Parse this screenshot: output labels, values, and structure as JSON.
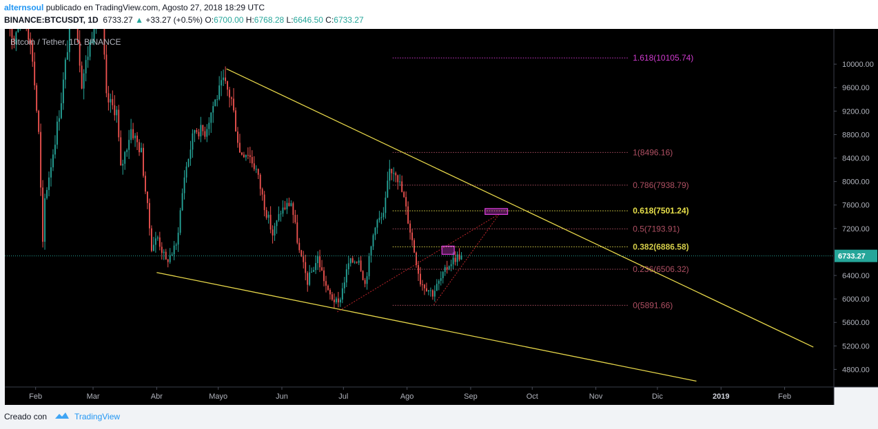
{
  "header": {
    "author": "alternsoul",
    "published_text": " publicado en TradingView.com, Agosto 27, 2018 18:29 UTC",
    "symbol": "BINANCE:BTCUSDT, 1D",
    "last": "6733.27",
    "change_arrow": "▲",
    "change": "+33.27 (+0.5%)",
    "o_label": "O:",
    "o_value": "6700.00",
    "h_label": "H:",
    "h_value": "6768.28",
    "l_label": "L:",
    "l_value": "6646.50",
    "c_label": "C:",
    "c_value": "6733.27"
  },
  "footer": {
    "created_with": "Creado con",
    "brand": "TradingView"
  },
  "chart_data": {
    "type": "candlestick",
    "title": "Bitcoin / Tether, 1D, BINANCE",
    "last_price_label": "6733.27",
    "last_price": 6733.27,
    "ylim": [
      4500,
      10600
    ],
    "y_ticks": [
      4800,
      5200,
      5600,
      6000,
      6400,
      6800,
      7200,
      7600,
      8000,
      8400,
      8800,
      9200,
      9600,
      10000
    ],
    "y_tick_labels": [
      "4800.00",
      "5200.00",
      "5600.00",
      "6000.00",
      "6400.00",
      "6800.00",
      "7200.00",
      "7600.00",
      "8000.00",
      "8400.00",
      "8800.00",
      "9200.00",
      "9600.00",
      "10000.00"
    ],
    "x_start": "2018-01-17",
    "x_end": "2019-02-25",
    "x_ticks": [
      {
        "date": "2018-02-01",
        "label": "Feb",
        "bold": false
      },
      {
        "date": "2018-03-01",
        "label": "Mar",
        "bold": false
      },
      {
        "date": "2018-04-01",
        "label": "Abr",
        "bold": false
      },
      {
        "date": "2018-05-01",
        "label": "Mayo",
        "bold": false
      },
      {
        "date": "2018-06-01",
        "label": "Jun",
        "bold": false
      },
      {
        "date": "2018-07-01",
        "label": "Jul",
        "bold": false
      },
      {
        "date": "2018-08-01",
        "label": "Ago",
        "bold": false
      },
      {
        "date": "2018-09-01",
        "label": "Sep",
        "bold": false
      },
      {
        "date": "2018-10-01",
        "label": "Oct",
        "bold": false
      },
      {
        "date": "2018-11-01",
        "label": "Nov",
        "bold": false
      },
      {
        "date": "2018-12-01",
        "label": "Dic",
        "bold": false
      },
      {
        "date": "2019-01-01",
        "label": "2019",
        "bold": true
      },
      {
        "date": "2019-02-01",
        "label": "Feb",
        "bold": false
      }
    ],
    "price_path": [
      [
        "2018-01-17",
        11000
      ],
      [
        "2018-01-22",
        10400
      ],
      [
        "2018-01-26",
        11200
      ],
      [
        "2018-01-31",
        10100
      ],
      [
        "2018-02-03",
        8800
      ],
      [
        "2018-02-05",
        6900
      ],
      [
        "2018-02-06",
        7700
      ],
      [
        "2018-02-10",
        8500
      ],
      [
        "2018-02-14",
        9400
      ],
      [
        "2018-02-20",
        11200
      ],
      [
        "2018-02-24",
        9700
      ],
      [
        "2018-03-01",
        10500
      ],
      [
        "2018-03-05",
        11400
      ],
      [
        "2018-03-08",
        9400
      ],
      [
        "2018-03-13",
        9200
      ],
      [
        "2018-03-15",
        8200
      ],
      [
        "2018-03-20",
        8900
      ],
      [
        "2018-03-25",
        8500
      ],
      [
        "2018-03-30",
        6900
      ],
      [
        "2018-04-02",
        7050
      ],
      [
        "2018-04-06",
        6630
      ],
      [
        "2018-04-11",
        6900
      ],
      [
        "2018-04-15",
        8100
      ],
      [
        "2018-04-20",
        8900
      ],
      [
        "2018-04-25",
        8850
      ],
      [
        "2018-04-29",
        9300
      ],
      [
        "2018-05-04",
        9700
      ],
      [
        "2018-05-08",
        9400
      ],
      [
        "2018-05-12",
        8500
      ],
      [
        "2018-05-16",
        8500
      ],
      [
        "2018-05-20",
        8200
      ],
      [
        "2018-05-24",
        7600
      ],
      [
        "2018-05-28",
        7100
      ],
      [
        "2018-06-01",
        7500
      ],
      [
        "2018-06-06",
        7650
      ],
      [
        "2018-06-10",
        6800
      ],
      [
        "2018-06-14",
        6300
      ],
      [
        "2018-06-19",
        6700
      ],
      [
        "2018-06-24",
        6100
      ],
      [
        "2018-06-29",
        5900
      ],
      [
        "2018-07-04",
        6600
      ],
      [
        "2018-07-09",
        6700
      ],
      [
        "2018-07-12",
        6250
      ],
      [
        "2018-07-17",
        7300
      ],
      [
        "2018-07-21",
        7400
      ],
      [
        "2018-07-24",
        8200
      ],
      [
        "2018-07-27",
        8200
      ],
      [
        "2018-07-31",
        7700
      ],
      [
        "2018-08-04",
        7000
      ],
      [
        "2018-08-08",
        6300
      ],
      [
        "2018-08-11",
        6200
      ],
      [
        "2018-08-14",
        6100
      ],
      [
        "2018-08-19",
        6400
      ],
      [
        "2018-08-22",
        6600
      ],
      [
        "2018-08-25",
        6700
      ],
      [
        "2018-08-27",
        6733.27
      ]
    ],
    "drawings": {
      "upper_trendline": {
        "color": "#e8d84a",
        "from": [
          "2018-05-05",
          9920
        ],
        "to": [
          "2019-02-15",
          5180
        ]
      },
      "lower_trendline": {
        "color": "#e8d84a",
        "from": [
          "2018-04-01",
          6450
        ],
        "to": [
          "2018-12-20",
          4600
        ]
      },
      "fibonacci": {
        "low": 5891.66,
        "high": 8496.16,
        "from": "2018-07-25",
        "to": "2018-11-17",
        "levels": [
          {
            "ratio": 0,
            "price": 5891.66,
            "label": "0(5891.66)",
            "color": "#b05063",
            "style": "dotted",
            "bold": false
          },
          {
            "ratio": 0.236,
            "price": 6506.32,
            "label": "0.236(6506.32)",
            "color": "#b05063",
            "style": "dotted",
            "bold": false
          },
          {
            "ratio": 0.382,
            "price": 6886.58,
            "label": "0.382(6886.58)",
            "color": "#d6cf4a",
            "style": "dotted",
            "bold": true
          },
          {
            "ratio": 0.5,
            "price": 7193.91,
            "label": "0.5(7193.91)",
            "color": "#b05063",
            "style": "dotted",
            "bold": false
          },
          {
            "ratio": 0.618,
            "price": 7501.24,
            "label": "0.618(7501.24)",
            "color": "#e8e04a",
            "style": "dotted",
            "bold": true
          },
          {
            "ratio": 0.786,
            "price": 7938.79,
            "label": "0.786(7938.79)",
            "color": "#b05063",
            "style": "dotted",
            "bold": false
          },
          {
            "ratio": 1,
            "price": 8496.16,
            "label": "1(8496.16)",
            "color": "#b05063",
            "style": "dotted",
            "bold": false
          },
          {
            "ratio": 1.618,
            "price": 10105.74,
            "label": "1.618(10105.74)",
            "color": "#d13bd0",
            "style": "dotted",
            "bold": false
          }
        ]
      },
      "cyan_arc_color": "#34a3c7",
      "red_dotted_wedge": {
        "color": "#c0262c",
        "apex": [
          "2018-09-15",
          7450
        ],
        "low1": [
          "2018-06-28",
          5780
        ],
        "low2": [
          "2018-08-14",
          5900
        ]
      },
      "magenta_boxes": [
        {
          "color": "#e040e0",
          "date_from": "2018-08-18",
          "date_to": "2018-08-24",
          "price_low": 6760,
          "price_high": 6900
        },
        {
          "color": "#e040e0",
          "date_from": "2018-09-08",
          "date_to": "2018-09-19",
          "price_low": 7440,
          "price_high": 7540
        }
      ]
    },
    "colors": {
      "background": "#000000",
      "up_candle": "#26a69a",
      "down_candle": "#ef5350",
      "text": "#787b86"
    }
  }
}
